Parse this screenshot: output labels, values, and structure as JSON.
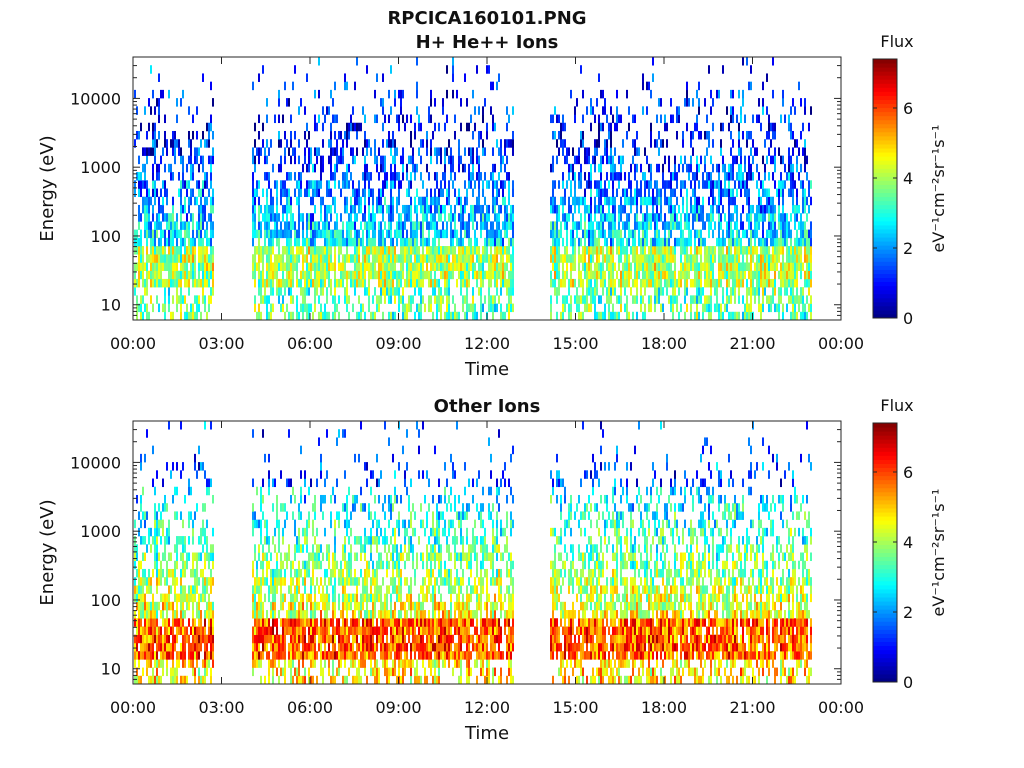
{
  "figure_title": "RPCICA160101.PNG",
  "chart_data": [
    {
      "type": "heatmap",
      "title": "H+ He++ Ions",
      "xlabel": "Time",
      "ylabel": "Energy (eV)",
      "x_ticks": [
        "00:00",
        "03:00",
        "06:00",
        "09:00",
        "12:00",
        "15:00",
        "18:00",
        "21:00",
        "00:00"
      ],
      "x_range_hours": [
        0,
        24
      ],
      "y_scale": "log",
      "y_range": [
        6,
        40000
      ],
      "y_ticks": [
        10,
        100,
        1000,
        10000
      ],
      "y_tick_labels": [
        "10",
        "100",
        "1000",
        "10000"
      ],
      "data_gaps_hours": [
        [
          2.7,
          4.0
        ],
        [
          12.9,
          14.1
        ]
      ],
      "data_coverage_hours": [
        [
          0,
          2.7
        ],
        [
          4.0,
          12.9
        ],
        [
          14.1,
          23.0
        ]
      ],
      "profile": {
        "peak_energy_eV": 40,
        "peak_flux": 4.0,
        "low_energy_flux": 3.5,
        "background_flux": 1.2
      },
      "colorbar": {
        "label": "Flux",
        "units": "eV⁻¹cm⁻²sr⁻¹s⁻¹",
        "range": [
          0,
          7.4
        ],
        "ticks": [
          0,
          2,
          4,
          6
        ],
        "tick_labels": [
          "0",
          "2",
          "4",
          "6"
        ],
        "colormap": "jet"
      },
      "grid": false
    },
    {
      "type": "heatmap",
      "title": "Other Ions",
      "xlabel": "Time",
      "ylabel": "Energy (eV)",
      "x_ticks": [
        "00:00",
        "03:00",
        "06:00",
        "09:00",
        "12:00",
        "15:00",
        "18:00",
        "21:00",
        "00:00"
      ],
      "x_range_hours": [
        0,
        24
      ],
      "y_scale": "log",
      "y_range": [
        6,
        40000
      ],
      "y_ticks": [
        10,
        100,
        1000,
        10000
      ],
      "y_tick_labels": [
        "10",
        "100",
        "1000",
        "10000"
      ],
      "data_gaps_hours": [
        [
          2.7,
          4.0
        ],
        [
          12.9,
          14.1
        ]
      ],
      "data_coverage_hours": [
        [
          0,
          2.7
        ],
        [
          4.0,
          12.9
        ],
        [
          14.1,
          23.0
        ]
      ],
      "profile": {
        "peak_energy_eV": 30,
        "peak_flux": 5.8,
        "low_energy_flux": 4.8,
        "background_flux": 1.5
      },
      "colorbar": {
        "label": "Flux",
        "units": "eV⁻¹cm⁻²sr⁻¹s⁻¹",
        "range": [
          0,
          7.4
        ],
        "ticks": [
          0,
          2,
          4,
          6
        ],
        "tick_labels": [
          "0",
          "2",
          "4",
          "6"
        ],
        "colormap": "jet"
      },
      "grid": false
    }
  ]
}
